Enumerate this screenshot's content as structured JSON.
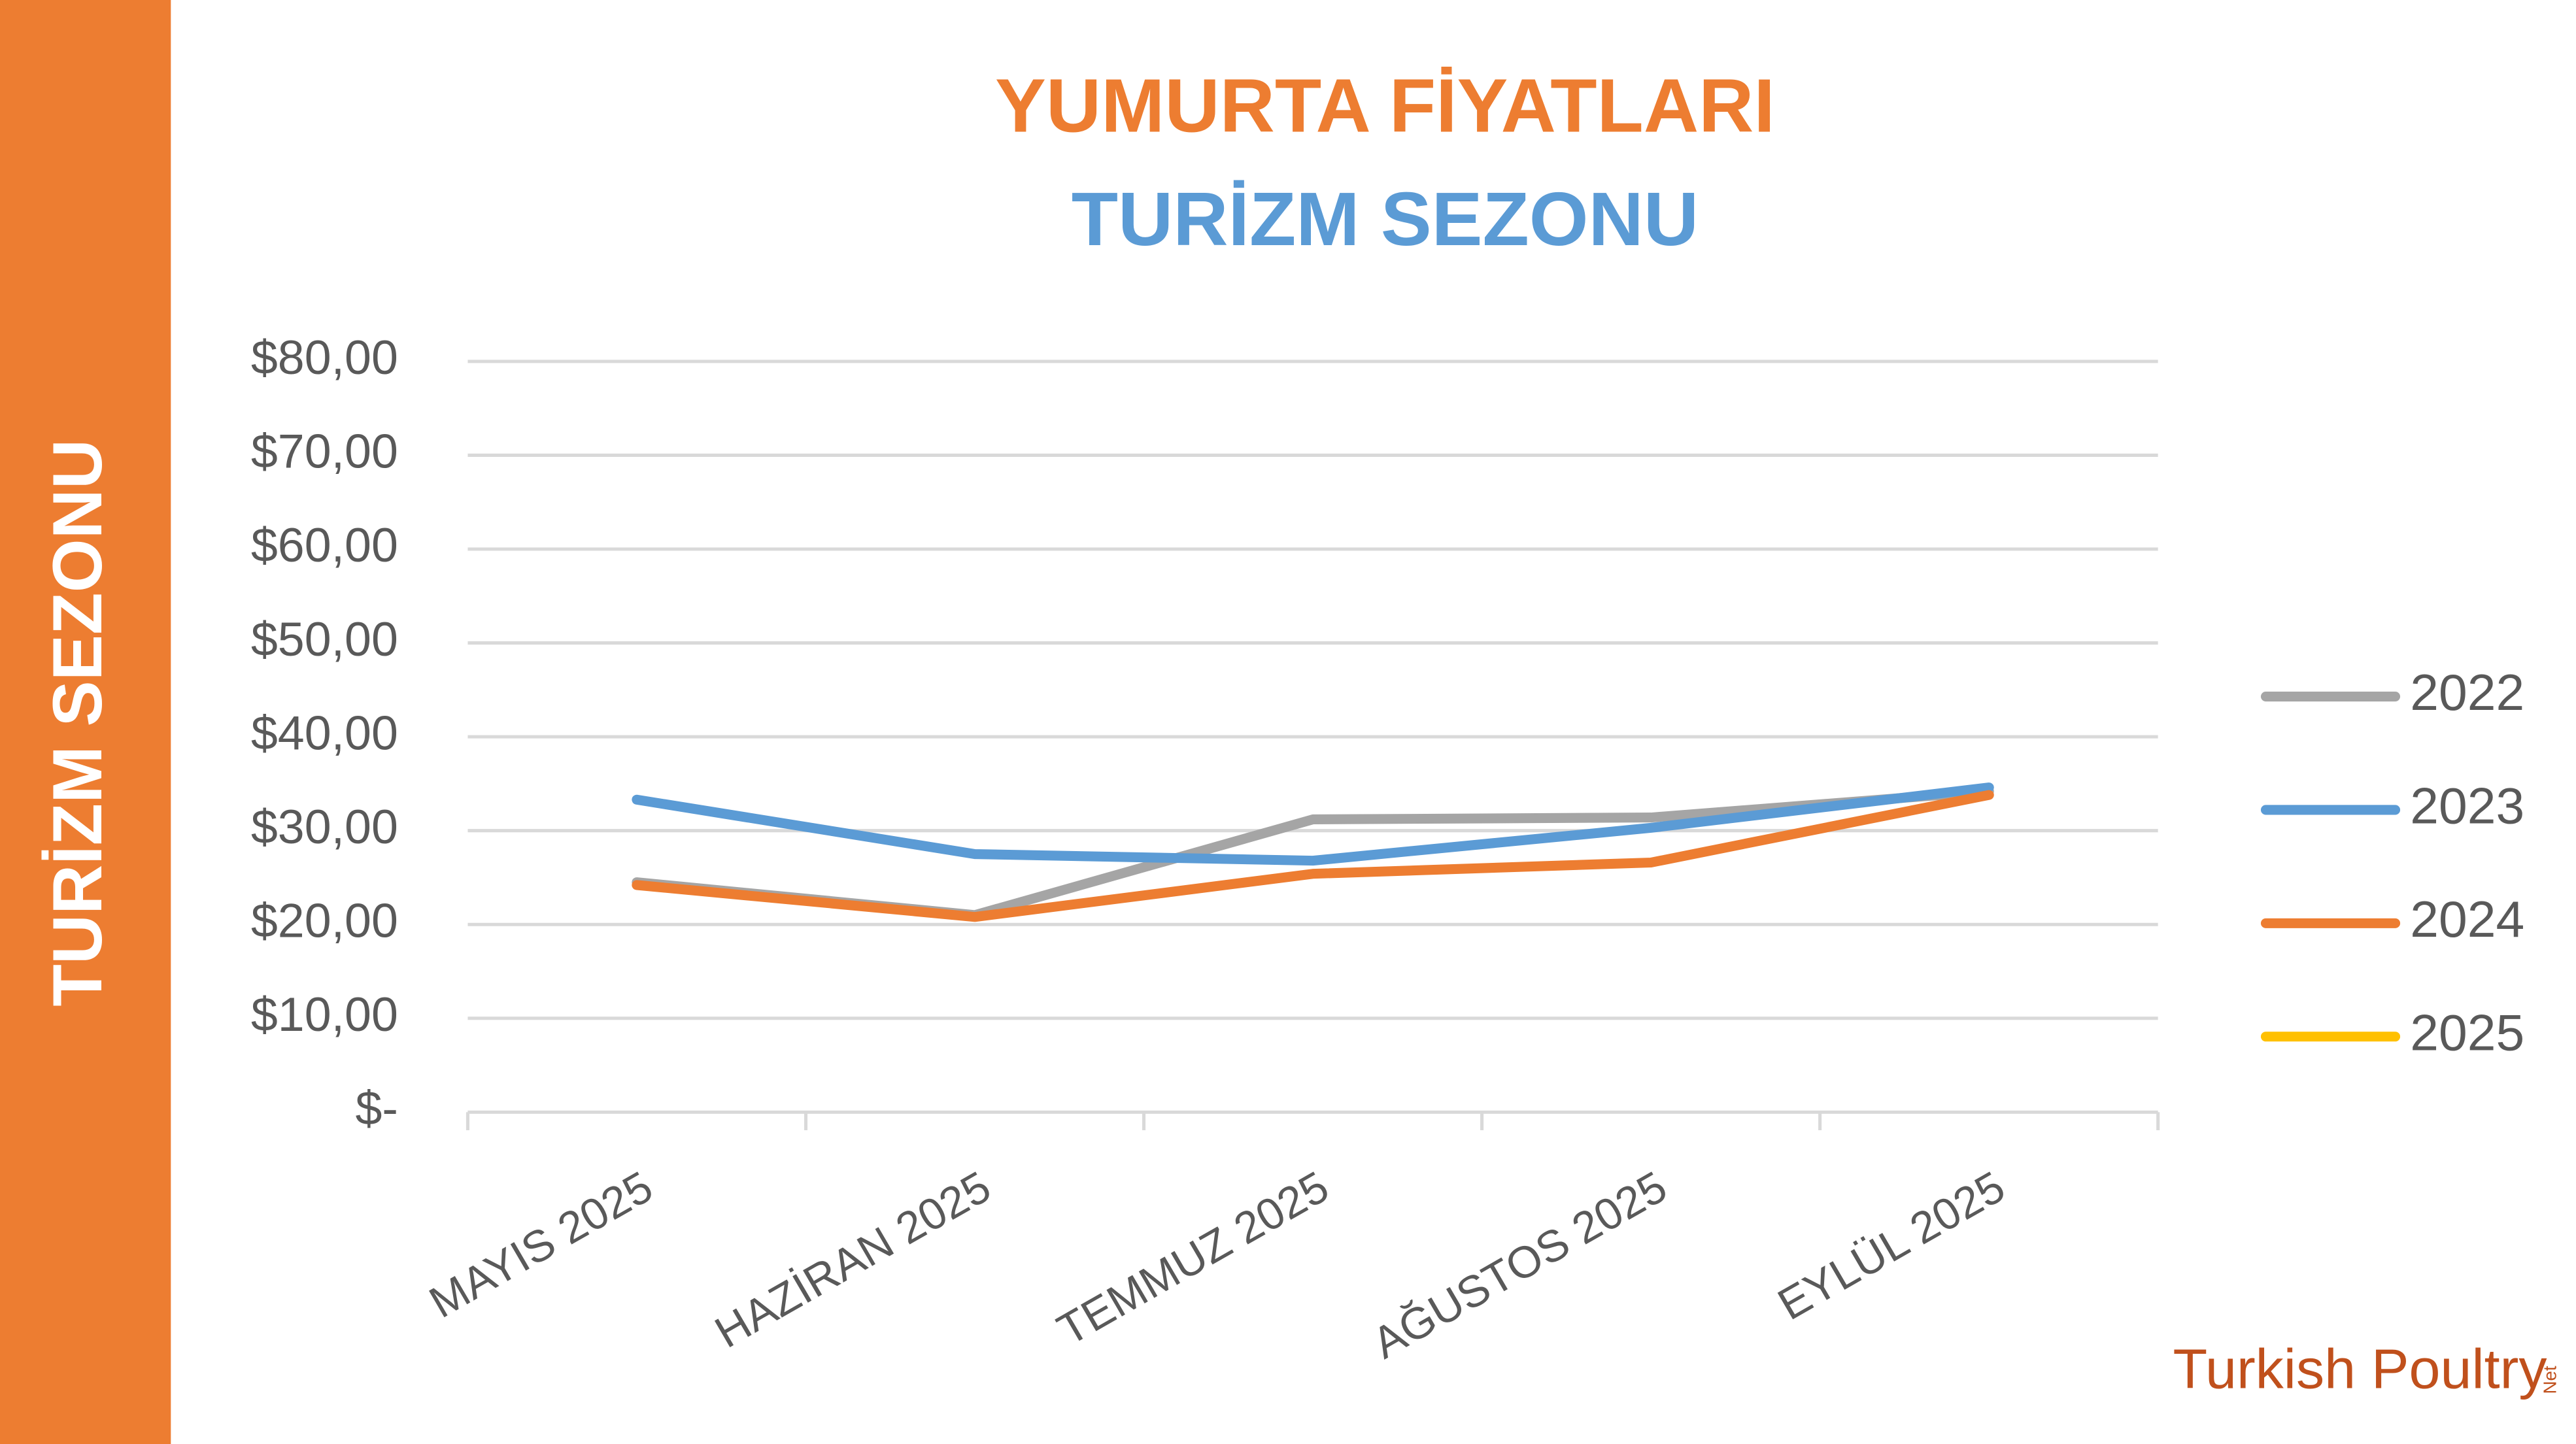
{
  "chart_data": {
    "type": "line",
    "title": "YUMURTA FİYATLARI",
    "subtitle": "TURİZM SEZONU",
    "side_label": "TURİZM SEZONU",
    "logo": {
      "text": "Turkish Poultry",
      "suffix": "Net"
    },
    "categories": [
      "MAYIS 2025",
      "HAZİRAN 2025",
      "TEMMUZ 2025",
      "AĞUSTOS 2025",
      "EYLÜL 2025"
    ],
    "series": [
      {
        "name": "2022",
        "color": "#a5a5a5",
        "values": [
          24.5,
          21.0,
          31.2,
          31.4,
          34.2
        ]
      },
      {
        "name": "2023",
        "color": "#5b9bd5",
        "values": [
          33.3,
          27.5,
          26.8,
          30.3,
          34.6
        ]
      },
      {
        "name": "2024",
        "color": "#ed7d31",
        "values": [
          24.2,
          20.8,
          25.4,
          26.6,
          33.8
        ]
      },
      {
        "name": "2025",
        "color": "#ffc000",
        "values": [
          null,
          null,
          null,
          null,
          null
        ]
      }
    ],
    "ylim": [
      0,
      80
    ],
    "yticks": [
      {
        "value": 0,
        "label": "$-"
      },
      {
        "value": 10,
        "label": "$10,00"
      },
      {
        "value": 20,
        "label": "$20,00"
      },
      {
        "value": 30,
        "label": "$30,00"
      },
      {
        "value": 40,
        "label": "$40,00"
      },
      {
        "value": 50,
        "label": "$50,00"
      },
      {
        "value": 60,
        "label": "$60,00"
      },
      {
        "value": 70,
        "label": "$70,00"
      },
      {
        "value": 80,
        "label": "$80,00"
      }
    ],
    "grid": true,
    "legend": "right"
  }
}
